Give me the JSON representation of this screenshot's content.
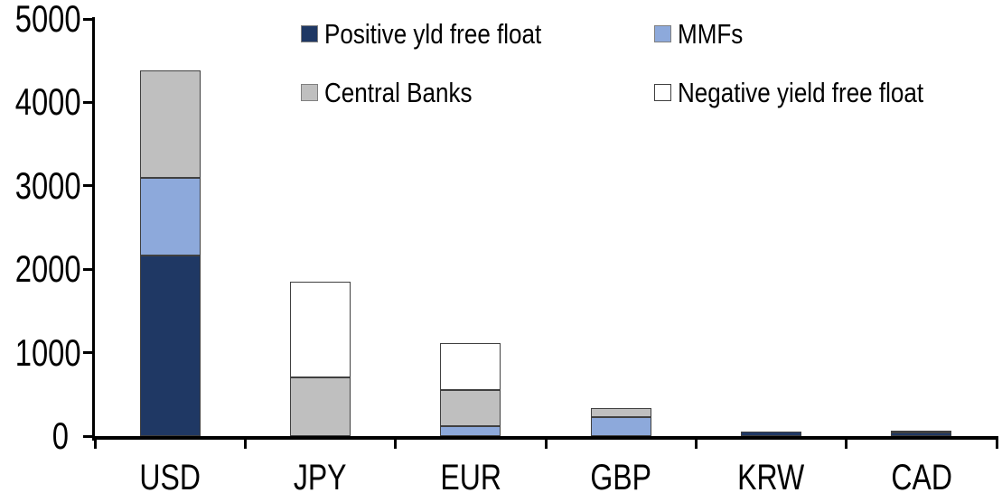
{
  "chart_data": {
    "type": "bar",
    "stacked": true,
    "title": "",
    "xlabel": "",
    "ylabel": "",
    "categories": [
      "USD",
      "JPY",
      "EUR",
      "GBP",
      "KRW",
      "CAD"
    ],
    "series": [
      {
        "name": "Positive yld free float",
        "color": "#1F3864",
        "values": [
          2160,
          0,
          0,
          0,
          50,
          40
        ]
      },
      {
        "name": "MMFs",
        "color": "#8DA9DB",
        "values": [
          930,
          0,
          120,
          230,
          0,
          0
        ]
      },
      {
        "name": "Central Banks",
        "color": "#BFBFBF",
        "values": [
          1290,
          700,
          430,
          110,
          0,
          30
        ]
      },
      {
        "name": "Negative yield free float",
        "color": "#FFFFFF",
        "values": [
          0,
          1150,
          560,
          0,
          0,
          0
        ]
      }
    ],
    "ylim": [
      0,
      5000
    ],
    "yticks": [
      "0",
      "1000",
      "2000",
      "3000",
      "4000",
      "5000"
    ],
    "ytick_step": 1000,
    "grid": false,
    "legend_position": "top-inside",
    "axis_color": "#000000",
    "segment_border_color": "#404040",
    "legend_swatch_border_color": "#808080",
    "background_color": "#FFFFFF"
  }
}
